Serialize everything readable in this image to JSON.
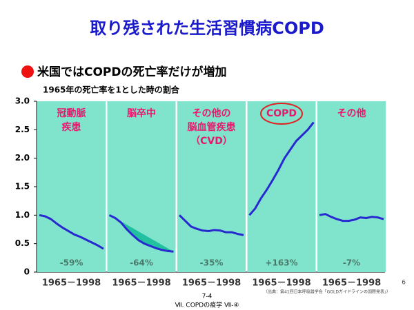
{
  "title": "取り残された生活習慣病COPD",
  "bullet": "米国ではCOPDの死亡率だけが増加",
  "source": "（出典：第41回日本呼吸器学会「GOLDガイドラインの国際発表」）",
  "page_number": "6",
  "footer_number": "7-4",
  "footer_text": "Ⅶ. COPDの疫学 Ⅶ-④",
  "chart_data": {
    "type": "line",
    "y_label": "1965年の死亡率を1とした時の割合",
    "ylim": [
      0,
      3
    ],
    "yticks": [
      0,
      0.5,
      {
        "value": 1,
        "label": "1.0"
      },
      1.5,
      {
        "value": 2,
        "label": "2.0"
      },
      2.5,
      {
        "value": 3,
        "label": "3.0"
      }
    ],
    "grid": false,
    "xlim": [
      1965,
      1998
    ],
    "x": [
      1965,
      1968,
      1971,
      1974,
      1977,
      1980,
      1983,
      1986,
      1989,
      1992,
      1995,
      1998
    ],
    "x_label": "1965－1998",
    "panel_color": "#80e3cc",
    "line_color": "#2828d0",
    "label_color": "#e8186e",
    "panels": [
      {
        "label_lines": [
          "冠動脈",
          "疾患"
        ],
        "change": "-59%",
        "values": [
          1.0,
          0.98,
          0.93,
          0.85,
          0.78,
          0.72,
          0.66,
          0.62,
          0.57,
          0.52,
          0.47,
          0.41
        ]
      },
      {
        "label_lines": [
          "脳卒中"
        ],
        "change": "-64%",
        "shaded": true,
        "values": [
          1.0,
          0.95,
          0.87,
          0.75,
          0.65,
          0.56,
          0.5,
          0.46,
          0.42,
          0.39,
          0.37,
          0.36
        ]
      },
      {
        "label_lines": [
          "その他の",
          "脳血管疾患",
          "（CVD）"
        ],
        "change": "-35%",
        "values": [
          1.0,
          0.9,
          0.8,
          0.76,
          0.73,
          0.72,
          0.74,
          0.73,
          0.7,
          0.7,
          0.67,
          0.65
        ]
      },
      {
        "label_lines": [
          "COPD"
        ],
        "change": "+163%",
        "circled": true,
        "values": [
          1.0,
          1.12,
          1.3,
          1.45,
          1.62,
          1.8,
          2.0,
          2.15,
          2.3,
          2.4,
          2.5,
          2.63
        ]
      },
      {
        "label_lines": [
          "その他"
        ],
        "change": "-7%",
        "values": [
          1.0,
          1.02,
          0.97,
          0.93,
          0.9,
          0.9,
          0.92,
          0.96,
          0.95,
          0.97,
          0.96,
          0.93
        ]
      }
    ]
  }
}
